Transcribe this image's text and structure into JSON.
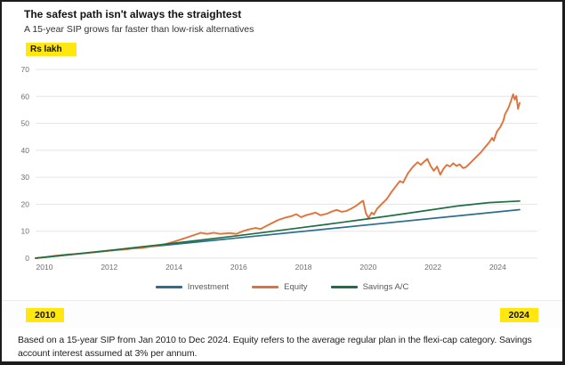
{
  "header": {
    "title": "The safest path isn't always the straightest",
    "subtitle": "A 15-year SIP grows far faster than low-risk alternatives"
  },
  "unit_label": "Rs lakh",
  "range": {
    "start": "2010",
    "end": "2024"
  },
  "footnote": "Based on a 15-year SIP from Jan 2010 to Dec 2024. Equity refers to the average regular plan in the flexi-cap category. Savings account interest assumed at 3% per annum.",
  "colors": {
    "highlight_yellow": "#ffe70f",
    "investment_blue": "#2c6e8f",
    "equity_orange": "#e17239",
    "savings_green": "#1f6f44",
    "grid_gray": "#e5e5e5",
    "tick_text": "#6e6e6e"
  },
  "chart_data": {
    "type": "line",
    "title": "The safest path isn't always the straightest",
    "subtitle": "A 15-year SIP grows far faster than low-risk alternatives",
    "ylabel": "Rs lakh",
    "xlabel": "",
    "ylim": [
      0,
      70
    ],
    "xlim": [
      2010,
      2025.5
    ],
    "y_ticks": [
      0,
      10,
      20,
      30,
      40,
      50,
      60,
      70
    ],
    "x_ticks": [
      2010,
      2012,
      2014,
      2016,
      2018,
      2020,
      2022,
      2024
    ],
    "grid": true,
    "legend_position": "bottom",
    "series": [
      {
        "name": "Investment",
        "color": "#2c6e8f",
        "points": [
          [
            2010,
            0
          ],
          [
            2024.95,
            18.0
          ]
        ]
      },
      {
        "name": "Equity",
        "color": "#e17239",
        "points": [
          [
            2010,
            0
          ],
          [
            2010.3,
            0.4
          ],
          [
            2010.6,
            0.9
          ],
          [
            2011,
            1.4
          ],
          [
            2011.3,
            1.6
          ],
          [
            2011.6,
            1.9
          ],
          [
            2012,
            2.4
          ],
          [
            2012.4,
            2.9
          ],
          [
            2012.8,
            3.3
          ],
          [
            2013,
            3.6
          ],
          [
            2013.3,
            3.8
          ],
          [
            2013.6,
            4.4
          ],
          [
            2014,
            5.2
          ],
          [
            2014.3,
            6.2
          ],
          [
            2014.6,
            7.4
          ],
          [
            2014.9,
            8.6
          ],
          [
            2015.1,
            9.4
          ],
          [
            2015.3,
            9.0
          ],
          [
            2015.5,
            9.4
          ],
          [
            2015.7,
            9.0
          ],
          [
            2016,
            9.3
          ],
          [
            2016.2,
            9.0
          ],
          [
            2016.4,
            10.0
          ],
          [
            2016.6,
            10.7
          ],
          [
            2016.8,
            11.2
          ],
          [
            2016.95,
            10.8
          ],
          [
            2017.1,
            11.8
          ],
          [
            2017.3,
            13.0
          ],
          [
            2017.5,
            14.2
          ],
          [
            2017.7,
            15.0
          ],
          [
            2017.9,
            15.6
          ],
          [
            2018.05,
            16.3
          ],
          [
            2018.2,
            15.2
          ],
          [
            2018.35,
            15.9
          ],
          [
            2018.5,
            16.4
          ],
          [
            2018.65,
            16.9
          ],
          [
            2018.8,
            15.9
          ],
          [
            2019,
            16.5
          ],
          [
            2019.15,
            17.3
          ],
          [
            2019.3,
            17.9
          ],
          [
            2019.45,
            17.2
          ],
          [
            2019.6,
            17.5
          ],
          [
            2019.75,
            18.4
          ],
          [
            2019.9,
            19.4
          ],
          [
            2020.05,
            20.8
          ],
          [
            2020.12,
            21.3
          ],
          [
            2020.2,
            16.8
          ],
          [
            2020.28,
            14.9
          ],
          [
            2020.38,
            16.9
          ],
          [
            2020.45,
            16.2
          ],
          [
            2020.55,
            18.4
          ],
          [
            2020.7,
            20.2
          ],
          [
            2020.85,
            22.0
          ],
          [
            2021,
            24.7
          ],
          [
            2021.15,
            27.0
          ],
          [
            2021.25,
            28.6
          ],
          [
            2021.35,
            28.0
          ],
          [
            2021.5,
            31.5
          ],
          [
            2021.65,
            33.8
          ],
          [
            2021.8,
            35.6
          ],
          [
            2021.9,
            34.6
          ],
          [
            2022,
            35.8
          ],
          [
            2022.1,
            36.8
          ],
          [
            2022.2,
            34.2
          ],
          [
            2022.3,
            32.4
          ],
          [
            2022.4,
            34.0
          ],
          [
            2022.5,
            31.0
          ],
          [
            2022.6,
            33.2
          ],
          [
            2022.7,
            34.6
          ],
          [
            2022.8,
            34.0
          ],
          [
            2022.9,
            35.2
          ],
          [
            2023,
            34.2
          ],
          [
            2023.1,
            34.8
          ],
          [
            2023.2,
            33.4
          ],
          [
            2023.3,
            33.8
          ],
          [
            2023.45,
            35.6
          ],
          [
            2023.6,
            37.4
          ],
          [
            2023.75,
            39.2
          ],
          [
            2023.9,
            41.4
          ],
          [
            2024,
            42.8
          ],
          [
            2024.1,
            44.6
          ],
          [
            2024.15,
            43.6
          ],
          [
            2024.25,
            47.0
          ],
          [
            2024.35,
            48.6
          ],
          [
            2024.45,
            51.0
          ],
          [
            2024.5,
            53.4
          ],
          [
            2024.6,
            55.6
          ],
          [
            2024.68,
            58.2
          ],
          [
            2024.75,
            60.8
          ],
          [
            2024.8,
            58.8
          ],
          [
            2024.85,
            60.2
          ],
          [
            2024.9,
            55.4
          ],
          [
            2024.95,
            57.6
          ]
        ]
      },
      {
        "name": "Savings A/C",
        "color": "#1f6f44",
        "points": [
          [
            2010,
            0
          ],
          [
            2011,
            1.24
          ],
          [
            2012,
            2.51
          ],
          [
            2013,
            3.82
          ],
          [
            2014,
            5.17
          ],
          [
            2015,
            6.56
          ],
          [
            2016,
            8.0
          ],
          [
            2017,
            9.47
          ],
          [
            2018,
            10.99
          ],
          [
            2019,
            12.56
          ],
          [
            2020,
            14.17
          ],
          [
            2021,
            15.83
          ],
          [
            2022,
            17.54
          ],
          [
            2023,
            19.3
          ],
          [
            2024,
            20.6
          ],
          [
            2024.95,
            21.2
          ]
        ]
      }
    ]
  }
}
